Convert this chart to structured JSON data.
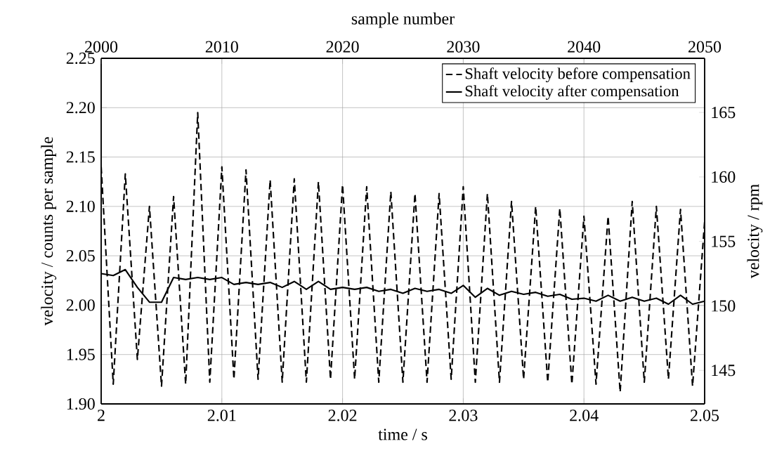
{
  "chart_data": {
    "type": "line",
    "xlabel": "time / s",
    "ylabel": "velocity / counts per sample",
    "x2label": "sample number",
    "y2label": "velocity / rpm",
    "x": [
      2.0,
      2.001,
      2.002,
      2.003,
      2.004,
      2.005,
      2.006,
      2.007,
      2.008,
      2.009,
      2.01,
      2.011,
      2.012,
      2.013,
      2.014,
      2.015,
      2.016,
      2.017,
      2.018,
      2.019,
      2.02,
      2.021,
      2.022,
      2.023,
      2.024,
      2.025,
      2.026,
      2.027,
      2.028,
      2.029,
      2.03,
      2.031,
      2.032,
      2.033,
      2.034,
      2.035,
      2.036,
      2.037,
      2.038,
      2.039,
      2.04,
      2.041,
      2.042,
      2.043,
      2.044,
      2.045,
      2.046,
      2.047,
      2.048,
      2.049,
      2.05
    ],
    "series": [
      {
        "name": "Shaft velocity before compensation",
        "color": "#000000",
        "line_style": "dashed",
        "values": [
          2.14,
          1.92,
          2.133,
          1.945,
          2.1,
          1.918,
          2.11,
          1.92,
          2.195,
          1.922,
          2.14,
          1.925,
          2.137,
          1.925,
          2.127,
          1.922,
          2.128,
          1.922,
          2.125,
          1.925,
          2.122,
          1.925,
          2.12,
          1.922,
          2.115,
          1.922,
          2.113,
          1.922,
          2.113,
          1.925,
          2.12,
          1.922,
          2.113,
          1.922,
          2.105,
          1.925,
          2.1,
          1.922,
          2.098,
          1.92,
          2.09,
          1.92,
          2.09,
          1.912,
          2.105,
          1.922,
          2.1,
          1.925,
          2.097,
          1.918,
          2.085
        ]
      },
      {
        "name": "Shaft velocity after compensation",
        "color": "#000000",
        "line_style": "solid",
        "values": [
          2.032,
          2.03,
          2.036,
          2.018,
          2.003,
          2.003,
          2.028,
          2.026,
          2.028,
          2.026,
          2.028,
          2.021,
          2.023,
          2.021,
          2.023,
          2.018,
          2.024,
          2.016,
          2.024,
          2.016,
          2.018,
          2.016,
          2.018,
          2.014,
          2.016,
          2.012,
          2.017,
          2.014,
          2.016,
          2.012,
          2.02,
          2.008,
          2.017,
          2.01,
          2.014,
          2.011,
          2.013,
          2.009,
          2.011,
          2.006,
          2.007,
          2.004,
          2.01,
          2.004,
          2.008,
          2.004,
          2.007,
          2.001,
          2.01,
          2.001,
          2.004
        ]
      }
    ],
    "xlim": [
      2.0,
      2.05
    ],
    "xticks": [
      2,
      2.01,
      2.02,
      2.03,
      2.04,
      2.05
    ],
    "ylim": [
      1.9,
      2.25
    ],
    "yticks": [
      {
        "value": 1.9,
        "label": "1.90"
      },
      {
        "value": 1.95,
        "label": "1.95"
      },
      {
        "value": 2.0,
        "label": "2.00"
      },
      {
        "value": 2.05,
        "label": "2.05"
      },
      {
        "value": 2.1,
        "label": "2.10"
      },
      {
        "value": 2.15,
        "label": "2.15"
      },
      {
        "value": 2.2,
        "label": "2.20"
      },
      {
        "value": 2.25,
        "label": "2.25"
      }
    ],
    "x2lim": [
      2000,
      2050
    ],
    "x2ticks": [
      2000,
      2010,
      2020,
      2030,
      2040,
      2050
    ],
    "y2lim": [
      142.4,
      169.2
    ],
    "y2ticks": [
      145,
      150,
      155,
      160,
      165
    ],
    "grid": true,
    "legend": "top right",
    "marker": "none"
  }
}
